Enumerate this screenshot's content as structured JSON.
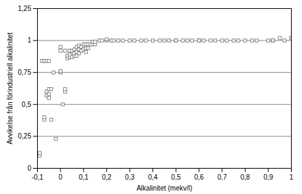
{
  "chart_data": {
    "type": "scatter",
    "xlabel": "Alkalinitet (mekv/l)",
    "ylabel": "Avvikelse från förindustriell alkalinitet",
    "xlim": [
      -0.1,
      1.0
    ],
    "ylim": [
      0,
      1.25
    ],
    "xticks": [
      {
        "value": -0.1,
        "label": "-0,1"
      },
      0,
      {
        "value": 0.1,
        "label": "0,1"
      },
      {
        "value": 0.2,
        "label": "0,2"
      },
      {
        "value": 0.3,
        "label": "0,3"
      },
      {
        "value": 0.4,
        "label": "0,4"
      },
      {
        "value": 0.5,
        "label": "0,5"
      },
      {
        "value": 0.6,
        "label": "0,6"
      },
      {
        "value": 0.7,
        "label": "0,7"
      },
      {
        "value": 0.8,
        "label": "0,8"
      },
      {
        "value": 0.9,
        "label": "0,9"
      },
      1
    ],
    "yticks": [
      0,
      {
        "value": 0.25,
        "label": "0,25"
      },
      {
        "value": 0.5,
        "label": "0,5"
      },
      {
        "value": 0.75,
        "label": "0,75"
      },
      1,
      {
        "value": 1.25,
        "label": "1,25"
      }
    ],
    "grid": true,
    "marker": "square",
    "color": "#666666",
    "x": [
      -0.09,
      -0.09,
      -0.08,
      -0.07,
      -0.07,
      -0.07,
      -0.06,
      -0.06,
      -0.06,
      -0.05,
      -0.05,
      -0.05,
      -0.05,
      -0.04,
      -0.04,
      -0.03,
      -0.02,
      0.0,
      0.0,
      0.0,
      0.0,
      0.01,
      0.02,
      0.02,
      0.02,
      0.03,
      0.03,
      0.04,
      0.04,
      0.04,
      0.05,
      0.05,
      0.06,
      0.06,
      0.06,
      0.07,
      0.07,
      0.07,
      0.08,
      0.08,
      0.08,
      0.09,
      0.09,
      0.1,
      0.1,
      0.11,
      0.11,
      0.11,
      0.12,
      0.12,
      0.13,
      0.14,
      0.14,
      0.15,
      0.15,
      0.17,
      0.18,
      0.2,
      0.2,
      0.22,
      0.23,
      0.25,
      0.27,
      0.3,
      0.32,
      0.35,
      0.37,
      0.4,
      0.43,
      0.45,
      0.47,
      0.5,
      0.5,
      0.53,
      0.55,
      0.57,
      0.6,
      0.6,
      0.62,
      0.65,
      0.67,
      0.7,
      0.72,
      0.75,
      0.77,
      0.8,
      0.83,
      0.85,
      0.9,
      0.92,
      0.92,
      0.95,
      0.97,
      1.0,
      1.0
    ],
    "values": [
      0.1,
      0.12,
      0.84,
      0.38,
      0.4,
      0.84,
      0.57,
      0.6,
      0.84,
      0.55,
      0.58,
      0.62,
      0.84,
      0.38,
      0.62,
      0.75,
      0.23,
      0.75,
      0.76,
      0.92,
      0.95,
      0.5,
      0.6,
      0.62,
      0.92,
      0.86,
      0.88,
      0.87,
      0.89,
      0.92,
      0.87,
      0.92,
      0.88,
      0.9,
      0.93,
      0.88,
      0.91,
      0.95,
      0.9,
      0.93,
      0.96,
      0.92,
      0.95,
      0.93,
      0.97,
      0.91,
      0.94,
      0.97,
      0.94,
      0.97,
      0.97,
      0.97,
      0.99,
      0.97,
      0.99,
      1.0,
      1.0,
      1.0,
      1.01,
      1.0,
      1.0,
      1.0,
      1.0,
      1.0,
      1.0,
      1.0,
      1.0,
      1.0,
      1.0,
      1.0,
      1.0,
      1.0,
      1.0,
      1.0,
      1.0,
      1.0,
      1.0,
      1.0,
      1.0,
      1.0,
      1.0,
      1.0,
      1.0,
      1.0,
      1.0,
      1.0,
      1.0,
      1.0,
      1.0,
      1.0,
      1.0,
      1.02,
      1.0,
      1.02,
      1.02
    ]
  }
}
